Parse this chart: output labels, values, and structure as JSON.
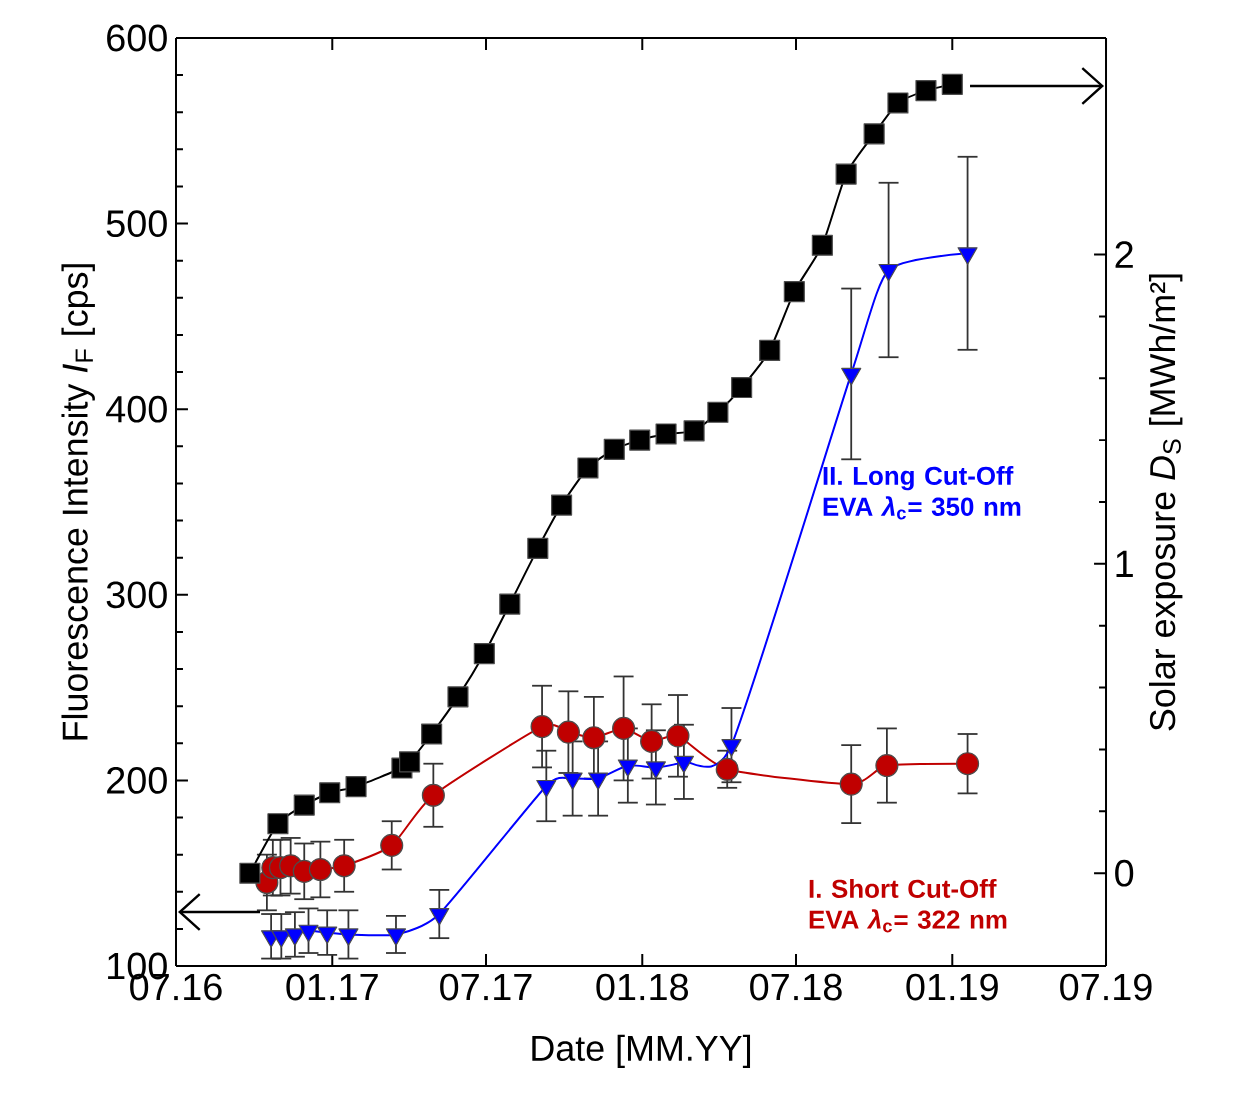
{
  "chart_data": {
    "type": "line",
    "xlabel": "Date [MM.YY]",
    "ylabel": "Fluorescence Intensity *I*$_{F}$ [cps]",
    "y2label": "Solar exposure *D*$_{S}$ [MWh/m²]",
    "xlim": [
      "2016-07-01",
      "2019-07-01"
    ],
    "xticks": [
      {
        "value": "2016-07-01",
        "label": "07.16"
      },
      {
        "value": "2017-01-01",
        "label": "01.17"
      },
      {
        "value": "2017-07-01",
        "label": "07.17"
      },
      {
        "value": "2018-01-01",
        "label": "01.18"
      },
      {
        "value": "2018-07-01",
        "label": "07.18"
      },
      {
        "value": "2019-01-01",
        "label": "01.19"
      },
      {
        "value": "2019-07-01",
        "label": "07.19"
      }
    ],
    "ylim": [
      100,
      600
    ],
    "yticks": [
      100,
      200,
      300,
      400,
      500,
      600
    ],
    "y2lim": [
      -0.3,
      2.7
    ],
    "y2ticks": [
      0,
      1,
      2
    ],
    "grid": false,
    "legend": false,
    "annotations": [
      "I. Short Cut-Off\nEVA *λ*$_{c}$= 322 nm",
      "II. Long Cut-Off\nEVA *λ*$_{c}$= 350 nm"
    ],
    "series": [
      {
        "color": "#000000",
        "marker": "square",
        "axis": "y2",
        "x": [
          "2016-09-26",
          "2016-10-29",
          "2016-11-29",
          "2016-12-29",
          "2017-01-29",
          "2017-03-24",
          "2017-04-02",
          "2017-04-28",
          "2017-05-29",
          "2017-06-29",
          "2017-07-29",
          "2017-08-31",
          "2017-09-28",
          "2017-10-29",
          "2017-11-29",
          "2017-12-29",
          "2018-01-29",
          "2018-03-03",
          "2018-03-31",
          "2018-04-28",
          "2018-05-31",
          "2018-06-29",
          "2018-08-01",
          "2018-08-29",
          "2018-10-01",
          "2018-10-29",
          "2018-12-01",
          "2019-01-01"
        ],
        "values": [
          0.0,
          0.16,
          0.22,
          0.26,
          0.28,
          0.34,
          0.36,
          0.45,
          0.57,
          0.71,
          0.87,
          1.05,
          1.19,
          1.31,
          1.37,
          1.4,
          1.42,
          1.43,
          1.49,
          1.57,
          1.69,
          1.88,
          2.03,
          2.26,
          2.39,
          2.49,
          2.53,
          2.55
        ]
      },
      {
        "color": "#c00000",
        "marker": "circle",
        "x": [
          "2016-10-16",
          "2016-10-23",
          "2016-11-01",
          "2016-11-13",
          "2016-11-29",
          "2016-12-18",
          "2017-01-15",
          "2017-03-12",
          "2017-04-30",
          "2017-09-05",
          "2017-10-06",
          "2017-11-05",
          "2017-12-10",
          "2018-01-12",
          "2018-02-12",
          "2018-04-11",
          "2018-09-04",
          "2018-10-16",
          "2019-01-19"
        ],
        "values": [
          145,
          153,
          153,
          154,
          151,
          152,
          154,
          165,
          192,
          229,
          226,
          223,
          228,
          221,
          224,
          206,
          198,
          208,
          209
        ],
        "errors": [
          15,
          15,
          15,
          15,
          15,
          15,
          14,
          13,
          17,
          22,
          22,
          22,
          28,
          20,
          22,
          10,
          21,
          20,
          16
        ]
      },
      {
        "color": "#0000ff",
        "marker": "triangle",
        "x": [
          "2016-10-21",
          "2016-11-02",
          "2016-11-18",
          "2016-12-04",
          "2016-12-26",
          "2017-01-20",
          "2017-03-17",
          "2017-05-07",
          "2017-09-10",
          "2017-10-11",
          "2017-11-10",
          "2017-12-15",
          "2018-01-17",
          "2018-02-19",
          "2018-04-16",
          "2018-09-04",
          "2018-10-18",
          "2019-01-19"
        ],
        "values": [
          116,
          116,
          117,
          119,
          118,
          117,
          117,
          128,
          197,
          201,
          201,
          208,
          207,
          210,
          219,
          419,
          475,
          484
        ],
        "errors": [
          12,
          12,
          12,
          12,
          12,
          13,
          10,
          13,
          19,
          20,
          20,
          20,
          20,
          20,
          20,
          46,
          47,
          52
        ]
      }
    ]
  }
}
